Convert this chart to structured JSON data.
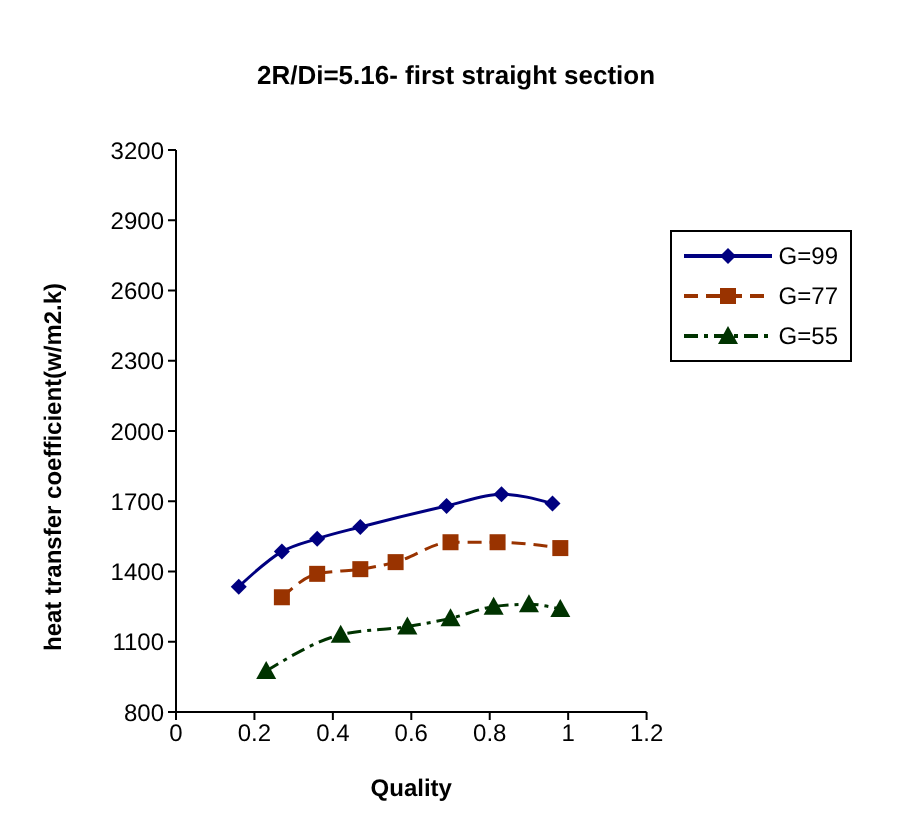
{
  "chart_data": {
    "type": "line",
    "title": "2R/Di=5.16- first straight section",
    "xlabel": "Quality",
    "ylabel": "heat transfer coefficient(w/m2.k)",
    "xlim": [
      0,
      1.2
    ],
    "xticks": [
      0,
      0.2,
      0.4,
      0.6,
      0.8,
      1,
      1.2
    ],
    "ylim": [
      800,
      3200
    ],
    "yticks": [
      800,
      1100,
      1400,
      1700,
      2000,
      2300,
      2600,
      2900,
      3200
    ],
    "grid": false,
    "legend": "top right",
    "series": [
      {
        "name": "G=99",
        "color": "#000080",
        "marker": "diamond",
        "line_style": "solid",
        "x": [
          0.16,
          0.27,
          0.36,
          0.47,
          0.69,
          0.83,
          0.96
        ],
        "values": [
          1335,
          1485,
          1540,
          1590,
          1680,
          1730,
          1690
        ]
      },
      {
        "name": "G=77",
        "color": "#993300",
        "marker": "square",
        "line_style": "dashed",
        "x": [
          0.27,
          0.36,
          0.47,
          0.56,
          0.7,
          0.82,
          0.98
        ],
        "values": [
          1290,
          1390,
          1410,
          1440,
          1525,
          1525,
          1500
        ]
      },
      {
        "name": "G=55",
        "color": "#003300",
        "marker": "triangle",
        "line_style": "dotted",
        "x": [
          0.23,
          0.42,
          0.59,
          0.7,
          0.81,
          0.9,
          0.98
        ],
        "values": [
          975,
          1130,
          1165,
          1200,
          1250,
          1260,
          1240
        ]
      }
    ]
  }
}
